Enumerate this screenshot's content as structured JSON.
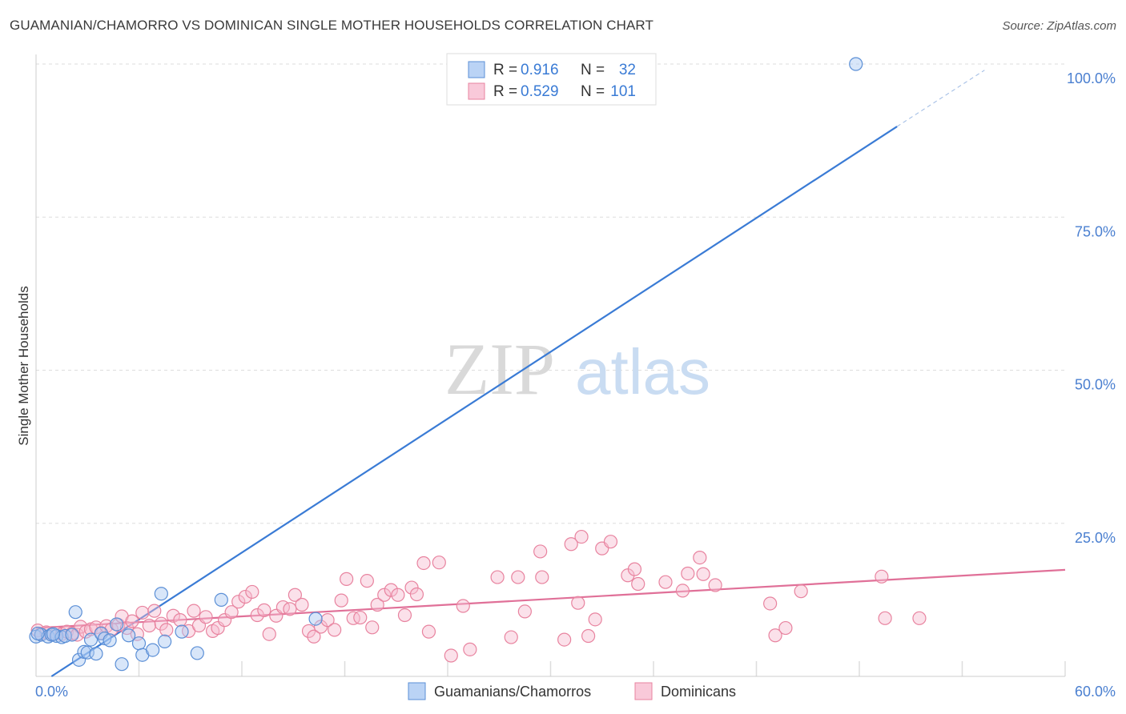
{
  "title": "GUAMANIAN/CHAMORRO VS DOMINICAN SINGLE MOTHER HOUSEHOLDS CORRELATION CHART",
  "source": "Source: ZipAtlas.com",
  "watermark": {
    "zip": "ZIP",
    "atlas": "atlas"
  },
  "colors": {
    "blue_fill": "#a9c8f2",
    "blue_stroke": "#5b8fd6",
    "blue_line": "#3a7bd5",
    "pink_fill": "#f7bcd0",
    "pink_stroke": "#e8839f",
    "pink_line": "#e07098",
    "grid": "#dddddd",
    "tick_label": "#4a7fd0"
  },
  "legend": {
    "r_label": "R =",
    "n_label": "N =",
    "series": [
      {
        "r": "0.916",
        "n": "32"
      },
      {
        "r": "0.529",
        "n": "101"
      }
    ]
  },
  "chart_data": {
    "type": "scatter",
    "xlabel": "",
    "ylabel": "Single Mother Households",
    "xlim": [
      0,
      60
    ],
    "ylim": [
      0,
      100
    ],
    "x_ticks": [
      "0.0%",
      "60.0%"
    ],
    "y_ticks": [
      {
        "value": 25,
        "label": "25.0%"
      },
      {
        "value": 50,
        "label": "50.0%"
      },
      {
        "value": 75,
        "label": "75.0%"
      },
      {
        "value": 100,
        "label": "100.0%"
      }
    ],
    "series": [
      {
        "name": "Guamanians/Chamorros",
        "color": "blue",
        "trend": {
          "x1": 0.9,
          "y1": 0,
          "x2": 50.2,
          "y2": 89.8,
          "dash_to_x": 55.3,
          "dash_to_y": 99
        },
        "points": [
          [
            0.0,
            6.5
          ],
          [
            0.3,
            6.8
          ],
          [
            0.7,
            6.5
          ],
          [
            0.9,
            6.8
          ],
          [
            1.2,
            6.6
          ],
          [
            1.5,
            6.4
          ],
          [
            1.7,
            6.6
          ],
          [
            2.1,
            6.8
          ],
          [
            2.3,
            10.5
          ],
          [
            2.5,
            2.7
          ],
          [
            2.8,
            4.0
          ],
          [
            3.0,
            3.9
          ],
          [
            3.2,
            6.0
          ],
          [
            3.5,
            3.7
          ],
          [
            3.8,
            7.0
          ],
          [
            4.0,
            6.2
          ],
          [
            4.3,
            5.9
          ],
          [
            4.7,
            8.5
          ],
          [
            5.0,
            2.0
          ],
          [
            5.4,
            6.7
          ],
          [
            6.0,
            5.4
          ],
          [
            6.2,
            3.5
          ],
          [
            6.8,
            4.3
          ],
          [
            7.3,
            13.5
          ],
          [
            7.5,
            5.7
          ],
          [
            8.5,
            7.3
          ],
          [
            9.4,
            3.8
          ],
          [
            10.8,
            12.5
          ],
          [
            16.3,
            9.4
          ],
          [
            47.8,
            100.0
          ],
          [
            0.1,
            7.0
          ],
          [
            1.0,
            6.9
          ]
        ]
      },
      {
        "name": "Dominicans",
        "color": "pink",
        "trend": {
          "x1": 0.0,
          "y1": 7.9,
          "x2": 60.0,
          "y2": 17.4
        },
        "points": [
          [
            0.1,
            7.5
          ],
          [
            0.3,
            6.9
          ],
          [
            0.6,
            7.2
          ],
          [
            0.9,
            6.8
          ],
          [
            1.2,
            7.1
          ],
          [
            1.5,
            6.9
          ],
          [
            1.8,
            7.3
          ],
          [
            2.1,
            7.0
          ],
          [
            2.4,
            6.8
          ],
          [
            2.6,
            8.1
          ],
          [
            2.9,
            7.3
          ],
          [
            3.2,
            7.7
          ],
          [
            3.5,
            8.0
          ],
          [
            3.8,
            7.1
          ],
          [
            4.1,
            8.2
          ],
          [
            4.4,
            7.7
          ],
          [
            4.8,
            8.4
          ],
          [
            5.0,
            9.8
          ],
          [
            5.3,
            7.9
          ],
          [
            5.6,
            9.0
          ],
          [
            5.9,
            6.9
          ],
          [
            6.2,
            10.4
          ],
          [
            6.6,
            8.3
          ],
          [
            6.9,
            10.7
          ],
          [
            7.3,
            8.6
          ],
          [
            7.6,
            7.6
          ],
          [
            8.0,
            9.9
          ],
          [
            8.4,
            9.2
          ],
          [
            8.9,
            7.4
          ],
          [
            9.2,
            10.7
          ],
          [
            9.5,
            8.3
          ],
          [
            9.9,
            9.7
          ],
          [
            10.3,
            7.4
          ],
          [
            10.6,
            7.9
          ],
          [
            11.0,
            9.2
          ],
          [
            11.4,
            10.5
          ],
          [
            11.8,
            12.2
          ],
          [
            12.2,
            13.0
          ],
          [
            12.6,
            13.8
          ],
          [
            12.9,
            10.0
          ],
          [
            13.3,
            10.8
          ],
          [
            13.6,
            6.9
          ],
          [
            14.0,
            9.9
          ],
          [
            14.4,
            11.3
          ],
          [
            14.8,
            11.0
          ],
          [
            15.1,
            13.3
          ],
          [
            15.5,
            11.7
          ],
          [
            15.9,
            7.4
          ],
          [
            16.2,
            6.5
          ],
          [
            16.6,
            8.1
          ],
          [
            17.0,
            9.2
          ],
          [
            17.4,
            7.6
          ],
          [
            17.8,
            12.4
          ],
          [
            18.1,
            15.9
          ],
          [
            18.5,
            9.5
          ],
          [
            18.9,
            9.6
          ],
          [
            19.3,
            15.6
          ],
          [
            19.6,
            8.0
          ],
          [
            19.9,
            11.7
          ],
          [
            20.3,
            13.3
          ],
          [
            20.7,
            14.1
          ],
          [
            21.1,
            13.3
          ],
          [
            21.5,
            10.0
          ],
          [
            21.9,
            14.5
          ],
          [
            22.2,
            13.4
          ],
          [
            22.6,
            18.5
          ],
          [
            22.9,
            7.3
          ],
          [
            23.5,
            18.6
          ],
          [
            24.2,
            3.4
          ],
          [
            24.9,
            11.5
          ],
          [
            25.3,
            4.4
          ],
          [
            26.9,
            16.2
          ],
          [
            27.7,
            6.4
          ],
          [
            28.1,
            16.2
          ],
          [
            28.5,
            10.6
          ],
          [
            29.4,
            20.4
          ],
          [
            29.5,
            16.2
          ],
          [
            30.8,
            6.0
          ],
          [
            31.2,
            21.6
          ],
          [
            31.6,
            12.0
          ],
          [
            31.8,
            22.8
          ],
          [
            32.2,
            6.6
          ],
          [
            32.6,
            9.3
          ],
          [
            33.0,
            20.9
          ],
          [
            33.5,
            22.0
          ],
          [
            34.5,
            16.5
          ],
          [
            34.9,
            17.5
          ],
          [
            35.1,
            15.1
          ],
          [
            36.7,
            15.4
          ],
          [
            37.7,
            14.0
          ],
          [
            38.0,
            16.8
          ],
          [
            38.7,
            19.4
          ],
          [
            38.9,
            16.7
          ],
          [
            39.6,
            14.9
          ],
          [
            42.8,
            11.9
          ],
          [
            43.1,
            6.7
          ],
          [
            43.7,
            7.9
          ],
          [
            44.6,
            13.9
          ],
          [
            49.3,
            16.3
          ],
          [
            49.5,
            9.5
          ],
          [
            51.5,
            9.5
          ]
        ]
      }
    ],
    "legend_placement": "top-center"
  }
}
